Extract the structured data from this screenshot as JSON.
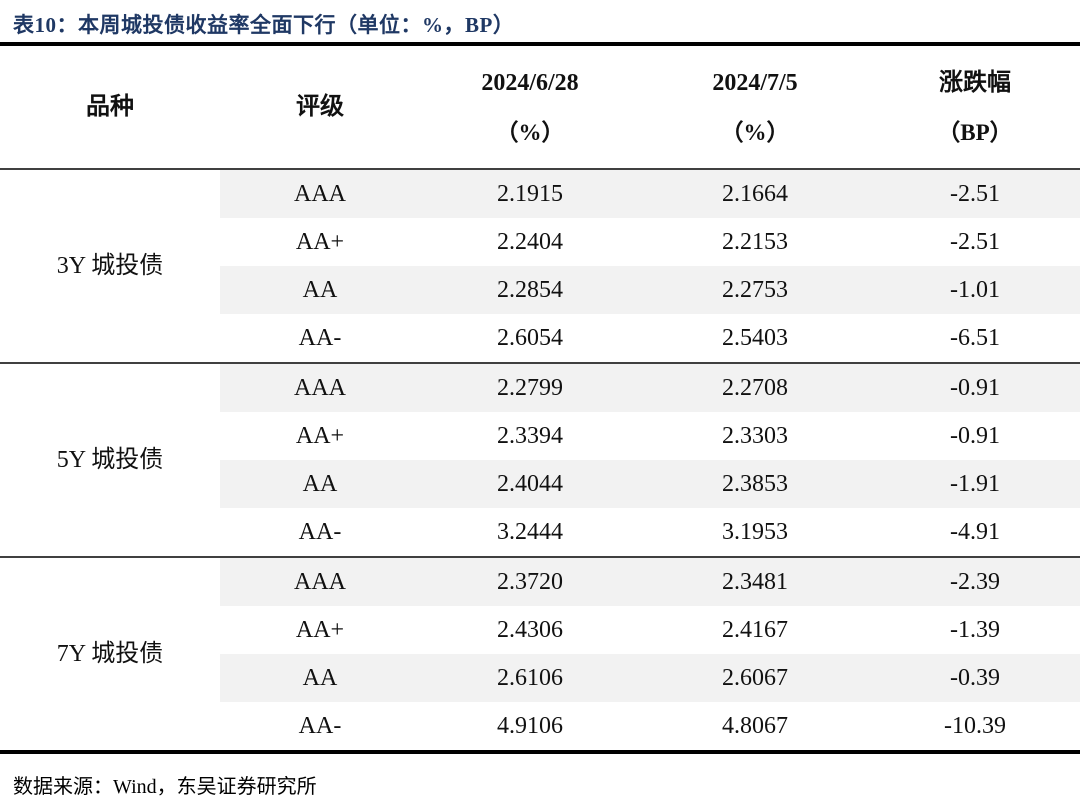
{
  "title": "表10：本周城投债收益率全面下行（单位：%，BP）",
  "colors": {
    "title_navy": "#1F3864",
    "row_shade": "#F2F2F2",
    "thick_rule": "#000000",
    "thin_rule": "#404040"
  },
  "table": {
    "headers": {
      "variety": "品种",
      "rating": "评级",
      "prev_date": "2024/6/28",
      "prev_unit": "（%）",
      "curr_date": "2024/7/5",
      "curr_unit": "（%）",
      "change": "涨跌幅",
      "change_unit": "（BP）"
    },
    "groups": [
      {
        "label": "3Y 城投债",
        "rows": [
          {
            "rating": "AAA",
            "prev": "2.1915",
            "curr": "2.1664",
            "chg": "-2.51"
          },
          {
            "rating": "AA+",
            "prev": "2.2404",
            "curr": "2.2153",
            "chg": "-2.51"
          },
          {
            "rating": "AA",
            "prev": "2.2854",
            "curr": "2.2753",
            "chg": "-1.01"
          },
          {
            "rating": "AA-",
            "prev": "2.6054",
            "curr": "2.5403",
            "chg": "-6.51"
          }
        ]
      },
      {
        "label": "5Y 城投债",
        "rows": [
          {
            "rating": "AAA",
            "prev": "2.2799",
            "curr": "2.2708",
            "chg": "-0.91"
          },
          {
            "rating": "AA+",
            "prev": "2.3394",
            "curr": "2.3303",
            "chg": "-0.91"
          },
          {
            "rating": "AA",
            "prev": "2.4044",
            "curr": "2.3853",
            "chg": "-1.91"
          },
          {
            "rating": "AA-",
            "prev": "3.2444",
            "curr": "3.1953",
            "chg": "-4.91"
          }
        ]
      },
      {
        "label": "7Y 城投债",
        "rows": [
          {
            "rating": "AAA",
            "prev": "2.3720",
            "curr": "2.3481",
            "chg": "-2.39"
          },
          {
            "rating": "AA+",
            "prev": "2.4306",
            "curr": "2.4167",
            "chg": "-1.39"
          },
          {
            "rating": "AA",
            "prev": "2.6106",
            "curr": "2.6067",
            "chg": "-0.39"
          },
          {
            "rating": "AA-",
            "prev": "4.9106",
            "curr": "4.8067",
            "chg": "-10.39"
          }
        ]
      }
    ]
  },
  "footer": {
    "source": "数据来源：Wind，东吴证券研究所"
  }
}
